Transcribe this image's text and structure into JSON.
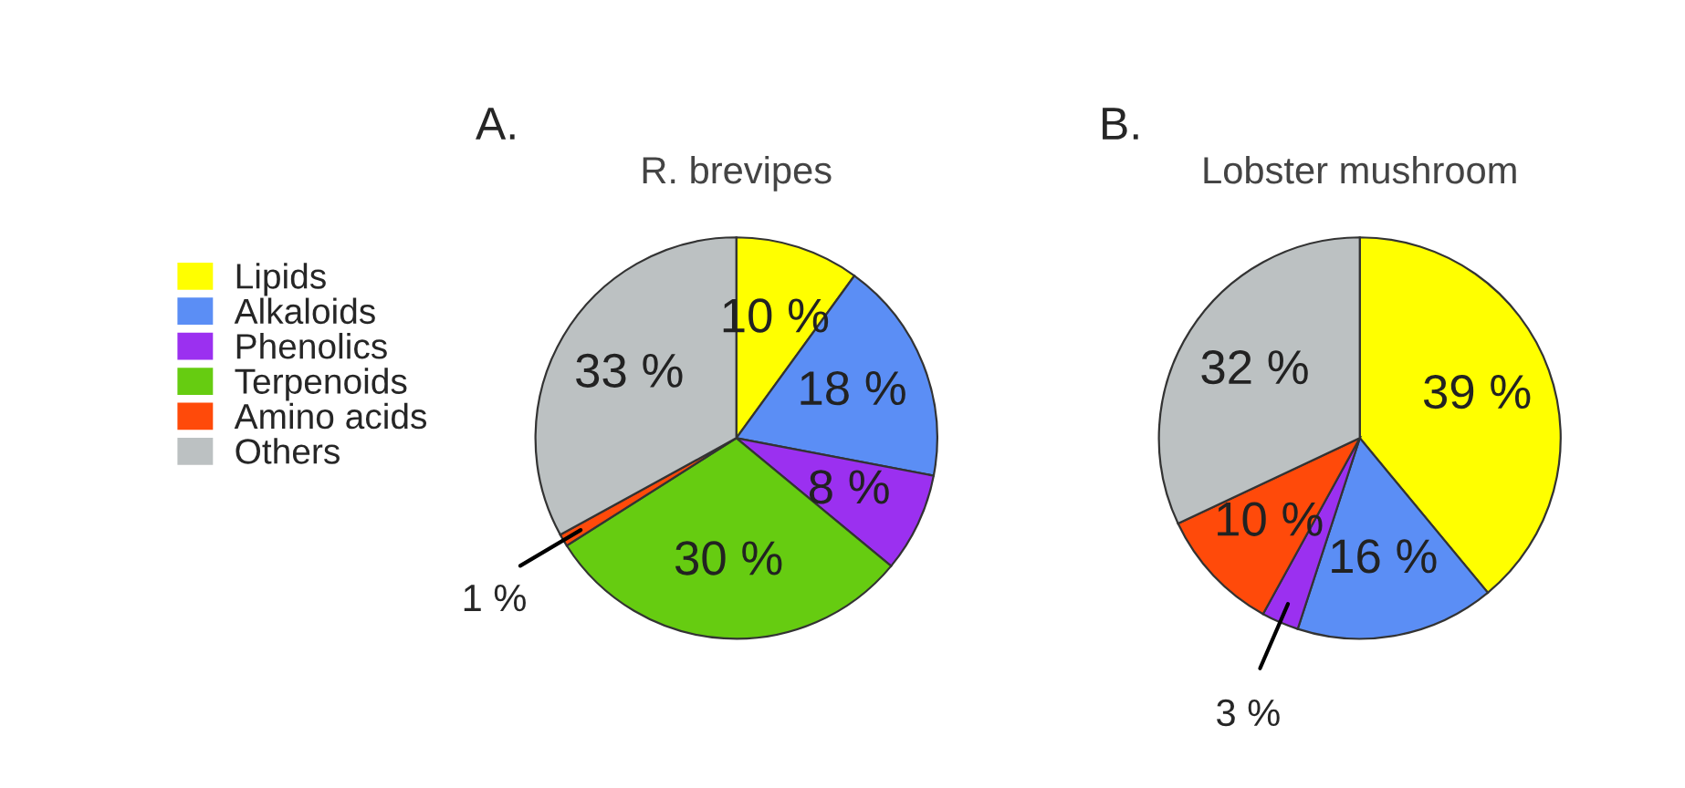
{
  "chart_data": [
    {
      "type": "pie",
      "title": "R. brevipes",
      "annotations": [
        "A."
      ],
      "legend": "left",
      "categories": [
        "Lipids",
        "Alkaloids",
        "Phenolics",
        "Terpenoids",
        "Amino acids",
        "Others"
      ],
      "values": [
        10,
        18,
        8,
        30,
        1,
        33
      ],
      "value_labels": [
        "10 %",
        "18 %",
        "8 %",
        "30 %",
        "1 %",
        "33 %"
      ],
      "colors": [
        "#ffff00",
        "#5b8ef5",
        "#9b30f0",
        "#66cc11",
        "#ff4a0a",
        "#bcc1c2"
      ]
    },
    {
      "type": "pie",
      "title": "Lobster mushroom",
      "annotations": [
        "B."
      ],
      "legend": false,
      "categories": [
        null,
        null,
        null,
        null,
        null
      ],
      "values": [
        39,
        16,
        3,
        10,
        32
      ],
      "value_labels": [
        "39 %",
        "16 %",
        "3 %",
        "10 %",
        "32 %"
      ],
      "colors": [
        "#ffff00",
        "#5b8ef5",
        "#9b30f0",
        "#ff4a0a",
        "#bcc1c2"
      ]
    }
  ]
}
